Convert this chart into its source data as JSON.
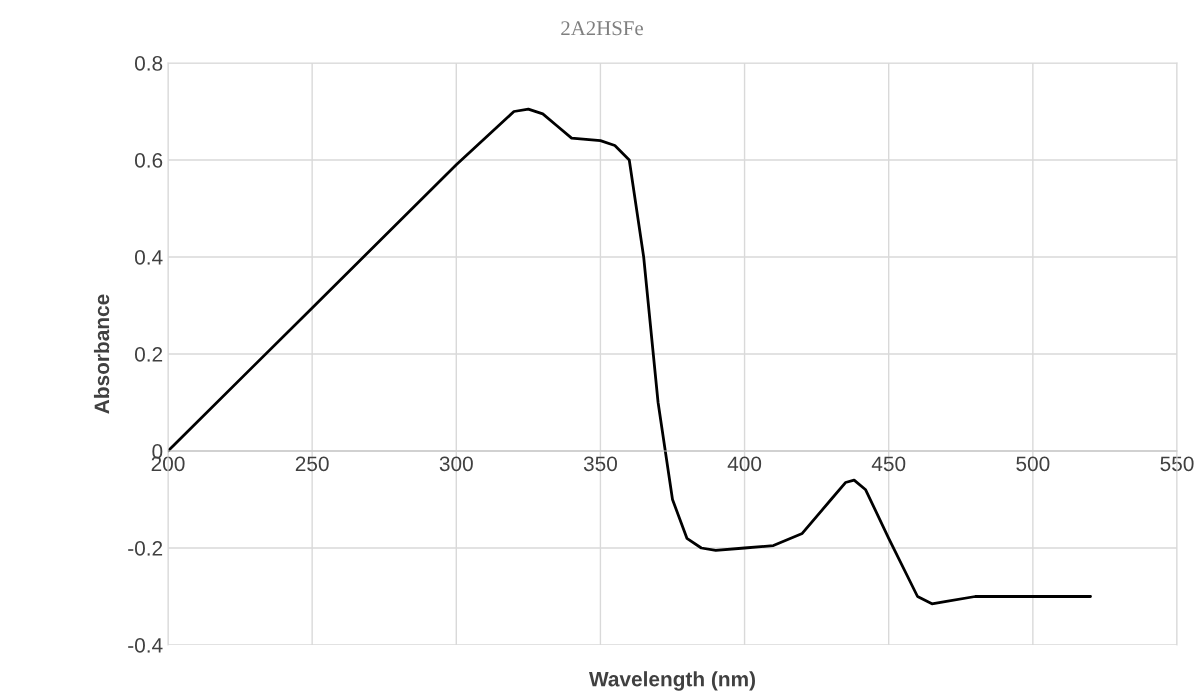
{
  "chart_data": {
    "type": "line",
    "title": "2A2HSFe",
    "xlabel": "Wavelength (nm)",
    "ylabel": "Absorbance",
    "xlim": [
      200,
      550
    ],
    "xticks": [
      200,
      250,
      300,
      350,
      400,
      450,
      500,
      550
    ],
    "ylim": [
      -0.4,
      0.8
    ],
    "yticks": [
      -0.4,
      -0.2,
      0,
      0.2,
      0.4,
      0.6,
      0.8
    ],
    "grid": true,
    "marker": "none",
    "line_style": "solid",
    "series": [
      {
        "color": "#000000",
        "x": [
          200,
          250,
          300,
          320,
          325,
          330,
          335,
          340,
          350,
          355,
          360,
          365,
          370,
          375,
          380,
          385,
          390,
          400,
          410,
          420,
          430,
          435,
          438,
          442,
          450,
          460,
          465,
          470,
          480,
          520
        ],
        "values": [
          0,
          0.295,
          0.59,
          0.7,
          0.705,
          0.695,
          0.67,
          0.645,
          0.64,
          0.63,
          0.6,
          0.4,
          0.1,
          -0.1,
          -0.18,
          -0.2,
          -0.205,
          -0.2,
          -0.195,
          -0.17,
          -0.1,
          -0.065,
          -0.06,
          -0.08,
          -0.18,
          -0.3,
          -0.315,
          -0.31,
          -0.3,
          -0.3
        ]
      }
    ]
  }
}
